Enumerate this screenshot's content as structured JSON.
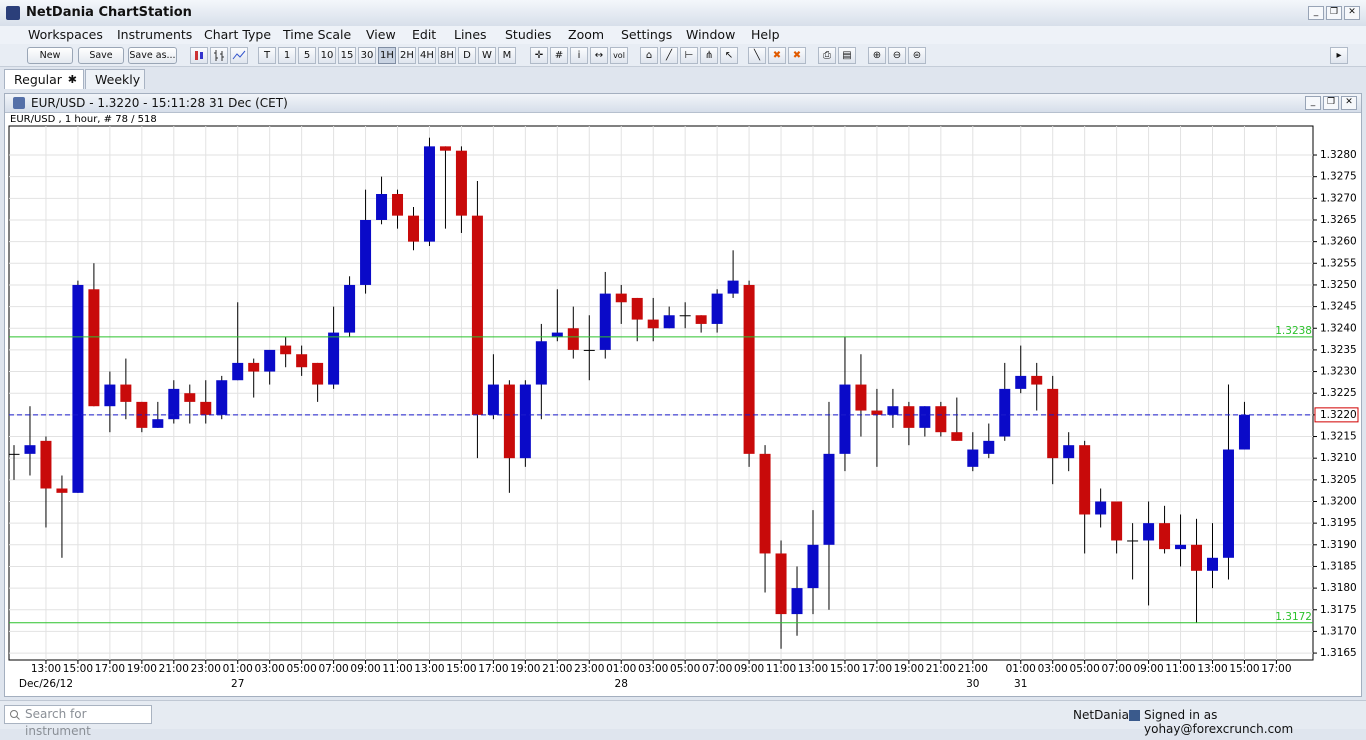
{
  "app": {
    "title": "NetDania ChartStation",
    "menu": [
      "Workspaces",
      "Instruments",
      "Chart Type",
      "Time Scale",
      "View",
      "Edit",
      "Lines",
      "Studies",
      "Zoom",
      "Settings",
      "Window",
      "Help"
    ],
    "toolbar": {
      "file_buttons": [
        "New",
        "Save",
        "Save as..."
      ],
      "intervals": [
        "T",
        "1",
        "5",
        "10",
        "15",
        "30",
        "1H",
        "2H",
        "4H",
        "8H",
        "D",
        "W",
        "M"
      ],
      "selected_interval": "1H",
      "vol_icon": "vol"
    },
    "tabs": [
      "Regular",
      "Weekly"
    ],
    "window_title": "EUR/USD - 1.3220 - 15:11:28  31 Dec (CET)",
    "search_placeholder": "Search for instrument",
    "status": {
      "provider": "NetDania",
      "signed_in": "Signed in as yohay@forexcrunch.com"
    }
  },
  "chart_data": {
    "type": "candlestick",
    "subtitle": "EUR/USD , 1 hour, # 78 / 518",
    "categories": [
      null,
      null,
      "13:00",
      null,
      "15:00",
      null,
      "17:00",
      null,
      "19:00",
      null,
      "21:00",
      null,
      "23:00",
      null,
      "01:00",
      null,
      "03:00",
      null,
      "05:00",
      null,
      "07:00",
      null,
      "09:00",
      null,
      "11:00",
      null,
      "13:00",
      null,
      "15:00",
      null,
      "17:00",
      null,
      "19:00",
      null,
      "21:00",
      null,
      "23:00",
      null,
      "01:00",
      null,
      "03:00",
      null,
      "05:00",
      null,
      "07:00",
      null,
      "09:00",
      null,
      "11:00",
      null,
      "13:00",
      null,
      "15:00",
      null,
      "17:00",
      null,
      "19:00",
      null,
      "21:00",
      null,
      "21:00",
      null,
      null,
      "01:00",
      null,
      "03:00",
      null,
      "05:00",
      null,
      "07:00",
      null,
      "09:00",
      null,
      "11:00",
      null,
      "13:00",
      null,
      "15:00",
      null,
      "17:00"
    ],
    "date_labels": [
      null,
      null,
      "Dec/26/12",
      null,
      null,
      null,
      null,
      null,
      null,
      null,
      null,
      null,
      null,
      null,
      "27",
      null,
      null,
      null,
      null,
      null,
      null,
      null,
      null,
      null,
      null,
      null,
      null,
      null,
      null,
      null,
      null,
      null,
      null,
      null,
      null,
      null,
      null,
      null,
      "28",
      null,
      null,
      null,
      null,
      null,
      null,
      null,
      null,
      null,
      null,
      null,
      null,
      null,
      null,
      null,
      null,
      null,
      null,
      null,
      null,
      null,
      "30",
      null,
      null,
      "31",
      null,
      null,
      null,
      null,
      null,
      null,
      null,
      null,
      null,
      null,
      null,
      null,
      null,
      null,
      null,
      null
    ],
    "open": [
      1.3211,
      1.3211,
      1.3214,
      1.3203,
      1.3202,
      1.3249,
      1.3222,
      1.3227,
      1.3223,
      1.3217,
      1.3219,
      1.3225,
      1.3223,
      1.322,
      1.3228,
      1.3232,
      1.323,
      1.3236,
      1.3234,
      1.3232,
      1.3227,
      1.3239,
      1.325,
      1.3265,
      1.3271,
      1.3266,
      1.326,
      1.3282,
      1.3281,
      1.3266,
      1.322,
      1.3227,
      1.321,
      1.3227,
      1.3238,
      1.324,
      1.3235,
      1.3235,
      1.3248,
      1.3247,
      1.3242,
      1.324,
      1.3243,
      1.3243,
      1.3241,
      1.3248,
      1.325,
      1.3211,
      1.3188,
      1.3174,
      1.318,
      1.319,
      1.3211,
      1.3227,
      1.3221,
      1.322,
      1.3222,
      1.3217,
      1.3222,
      1.3216,
      1.3208,
      1.3211,
      1.3215,
      1.3226,
      1.3229,
      1.3226,
      1.321,
      1.3213,
      1.3197,
      1.32,
      1.3191,
      1.3191,
      1.3195,
      1.3189,
      1.319,
      1.3184,
      1.3187,
      1.3212,
      null,
      null
    ],
    "high": [
      1.3213,
      1.3222,
      1.3215,
      1.3206,
      1.3251,
      1.3255,
      1.323,
      1.3233,
      1.3223,
      1.3223,
      1.3228,
      1.3227,
      1.3228,
      1.3229,
      1.3246,
      1.3233,
      1.3235,
      1.3238,
      1.3236,
      1.3232,
      1.3245,
      1.3252,
      1.3272,
      1.3275,
      1.3272,
      1.3268,
      1.3284,
      1.3282,
      1.3282,
      1.3274,
      1.3234,
      1.3228,
      1.3228,
      1.3241,
      1.3249,
      1.3245,
      1.3243,
      1.3253,
      1.325,
      1.3247,
      1.3247,
      1.3245,
      1.3246,
      1.3243,
      1.3249,
      1.3258,
      1.3251,
      1.3213,
      1.3191,
      1.3185,
      1.3198,
      1.3223,
      1.3238,
      1.3234,
      1.3226,
      1.3226,
      1.3223,
      1.3222,
      1.3223,
      1.3224,
      1.3216,
      1.3218,
      1.3232,
      1.3236,
      1.3232,
      1.3229,
      1.3216,
      1.3214,
      1.3203,
      1.32,
      1.3195,
      1.32,
      1.3199,
      1.3197,
      1.3196,
      1.3195,
      1.3227,
      1.3223,
      null,
      null
    ],
    "low": [
      1.3205,
      1.3206,
      1.3194,
      1.3187,
      1.3202,
      1.3222,
      1.3216,
      1.3219,
      1.3216,
      1.3217,
      1.3218,
      1.3218,
      1.3218,
      1.3219,
      1.3228,
      1.3224,
      1.3227,
      1.3231,
      1.3229,
      1.3223,
      1.3226,
      1.3238,
      1.3248,
      1.3264,
      1.3263,
      1.3258,
      1.3259,
      1.3263,
      1.3262,
      1.321,
      1.3219,
      1.3202,
      1.3208,
      1.3219,
      1.3237,
      1.3233,
      1.3228,
      1.3233,
      1.3241,
      1.3237,
      1.3237,
      1.324,
      1.324,
      1.3239,
      1.3239,
      1.3247,
      1.3208,
      1.3179,
      1.3166,
      1.3169,
      1.3174,
      1.3175,
      1.3207,
      1.3215,
      1.3208,
      1.3217,
      1.3213,
      1.3215,
      1.3215,
      1.3214,
      1.3207,
      1.321,
      1.3214,
      1.3225,
      1.3221,
      1.3204,
      1.3207,
      1.3188,
      1.3194,
      1.3188,
      1.3182,
      1.3176,
      1.3188,
      1.3185,
      1.3172,
      1.318,
      1.3182,
      1.3212,
      null,
      null
    ],
    "close": [
      1.3211,
      1.3213,
      1.3203,
      1.3202,
      1.325,
      1.3222,
      1.3227,
      1.3223,
      1.3217,
      1.3219,
      1.3226,
      1.3223,
      1.322,
      1.3228,
      1.3232,
      1.323,
      1.3235,
      1.3234,
      1.3231,
      1.3227,
      1.3239,
      1.325,
      1.3265,
      1.3271,
      1.3266,
      1.326,
      1.3282,
      1.3281,
      1.3266,
      1.322,
      1.3227,
      1.321,
      1.3227,
      1.3237,
      1.3239,
      1.3235,
      1.3235,
      1.3248,
      1.3246,
      1.3242,
      1.324,
      1.3243,
      1.3243,
      1.3241,
      1.3248,
      1.3251,
      1.3211,
      1.3188,
      1.3174,
      1.318,
      1.319,
      1.3211,
      1.3227,
      1.3221,
      1.322,
      1.3222,
      1.3217,
      1.3222,
      1.3216,
      1.3214,
      1.3212,
      1.3214,
      1.3226,
      1.3229,
      1.3227,
      1.321,
      1.3213,
      1.3197,
      1.32,
      1.3191,
      1.3191,
      1.3195,
      1.3189,
      1.319,
      1.3184,
      1.3187,
      1.3212,
      1.322,
      null,
      null
    ],
    "up_color": "#0a0ac8",
    "down_color": "#c80a0a",
    "ylim": [
      1.31634,
      1.32867
    ],
    "yticks": [
      {
        "value": 1.3165,
        "label": "1.3165"
      },
      {
        "value": 1.317,
        "label": "1.3170"
      },
      {
        "value": 1.3175,
        "label": "1.3175"
      },
      {
        "value": 1.318,
        "label": "1.3180"
      },
      {
        "value": 1.3185,
        "label": "1.3185"
      },
      {
        "value": 1.319,
        "label": "1.3190"
      },
      {
        "value": 1.3195,
        "label": "1.3195"
      },
      {
        "value": 1.32,
        "label": "1.3200"
      },
      {
        "value": 1.3205,
        "label": "1.3205"
      },
      {
        "value": 1.321,
        "label": "1.3210"
      },
      {
        "value": 1.3215,
        "label": "1.3215"
      },
      {
        "value": 1.322,
        "label": "1.3220"
      },
      {
        "value": 1.3225,
        "label": "1.3225"
      },
      {
        "value": 1.323,
        "label": "1.3230"
      },
      {
        "value": 1.3235,
        "label": "1.3235"
      },
      {
        "value": 1.324,
        "label": "1.3240"
      },
      {
        "value": 1.3245,
        "label": "1.3245"
      },
      {
        "value": 1.325,
        "label": "1.3250"
      },
      {
        "value": 1.3255,
        "label": "1.3255"
      },
      {
        "value": 1.326,
        "label": "1.3260"
      },
      {
        "value": 1.3265,
        "label": "1.3265"
      },
      {
        "value": 1.327,
        "label": "1.3270"
      },
      {
        "value": 1.3275,
        "label": "1.3275"
      },
      {
        "value": 1.328,
        "label": "1.3280"
      }
    ],
    "grid": true,
    "hlines": [
      {
        "value": 1.3238,
        "label": "1.3238",
        "color": "#2cc22c",
        "style": "solid",
        "label_position": "plot"
      },
      {
        "value": 1.3172,
        "label": "1.3172",
        "color": "#2cc22c",
        "style": "solid",
        "label_position": "plot"
      },
      {
        "value": 1.322,
        "label": "1.3220",
        "color": "#1a1acc",
        "style": "dashed",
        "label_position": "axis",
        "label_border": "#d00000"
      }
    ]
  }
}
